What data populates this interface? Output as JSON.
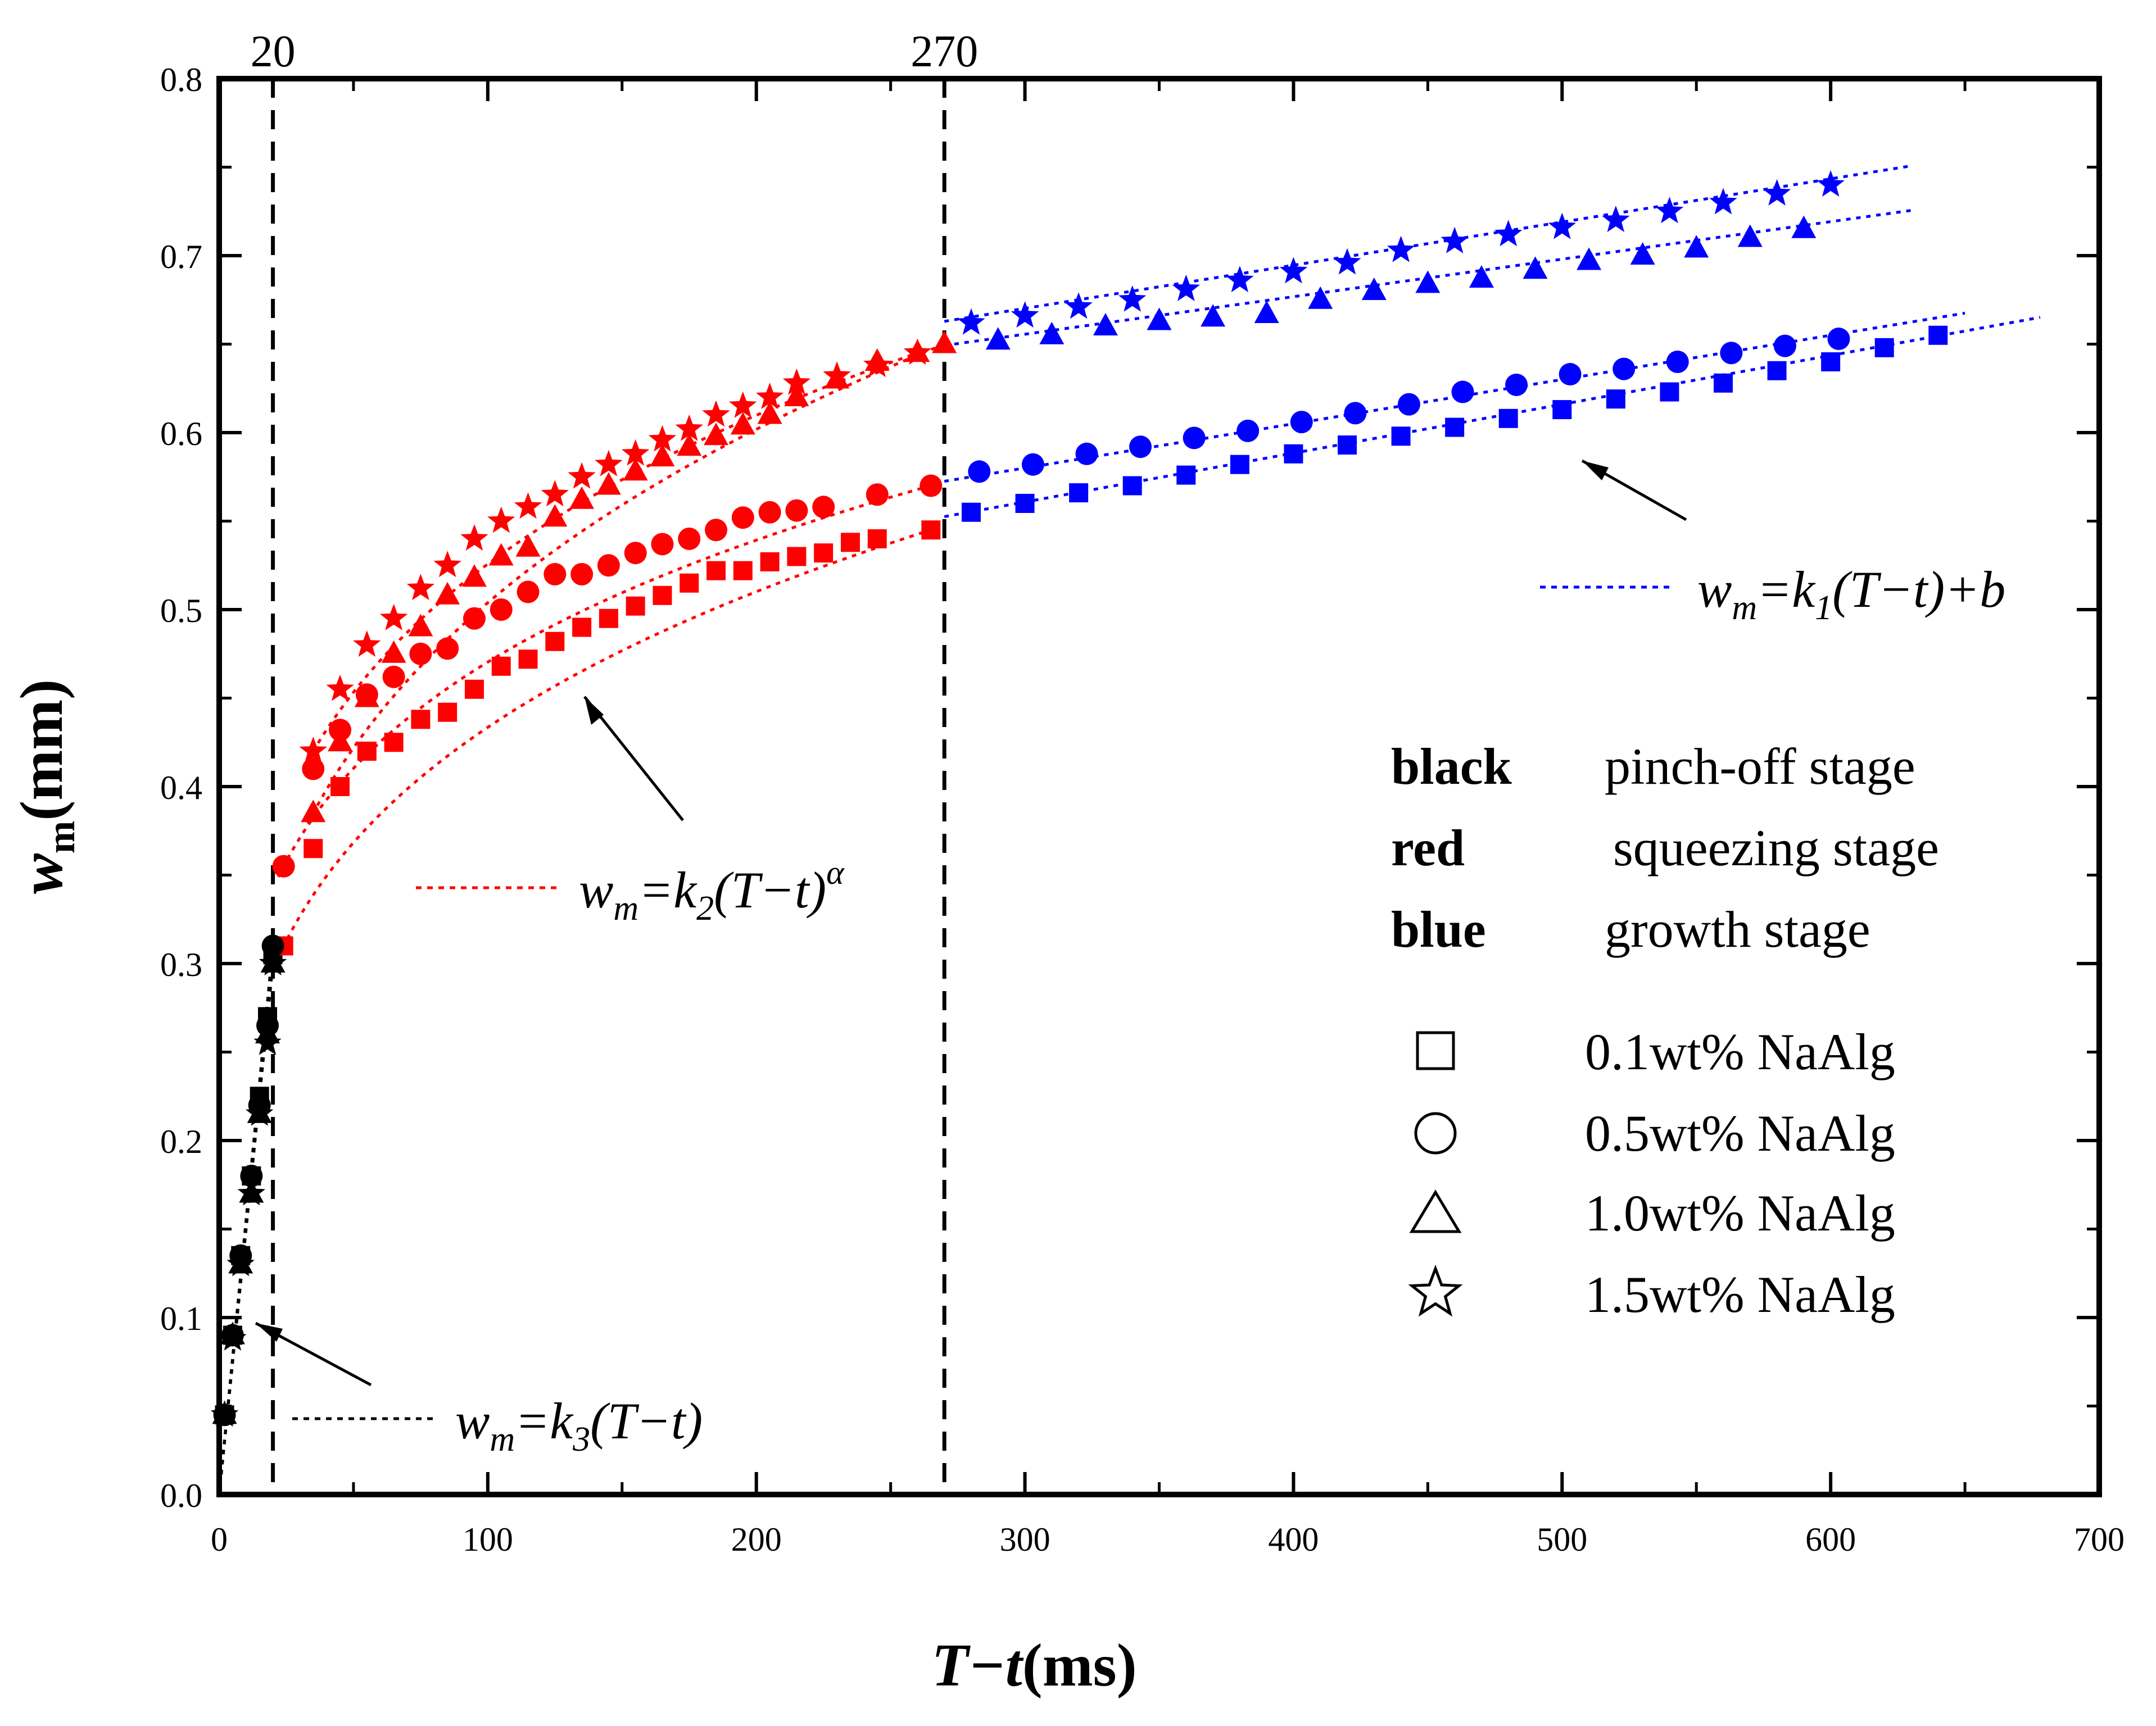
{
  "chart_data": {
    "type": "scatter",
    "xlabel": {
      "main": "T−t",
      "unit": "(ms)"
    },
    "ylabel": {
      "main": "w",
      "sub": "m",
      "unit": "(mm)"
    },
    "xlim": [
      0,
      700
    ],
    "ylim": [
      0,
      0.8
    ],
    "xticks": [
      0,
      100,
      200,
      300,
      400,
      500,
      600,
      700
    ],
    "yticks": [
      0.0,
      0.1,
      0.2,
      0.3,
      0.4,
      0.5,
      0.6,
      0.7,
      0.8
    ],
    "xtick_labels": [
      "0",
      "100",
      "200",
      "300",
      "400",
      "500",
      "600",
      "700"
    ],
    "ytick_labels": [
      "0.0",
      "0.1",
      "0.2",
      "0.3",
      "0.4",
      "0.5",
      "0.6",
      "0.7",
      "0.8"
    ],
    "grid": false,
    "stage_boundaries": [
      {
        "x": 20,
        "label": "20"
      },
      {
        "x": 270,
        "label": "270"
      }
    ],
    "stage_colors": {
      "black": "#000000",
      "red": "#ff0000",
      "blue": "#0000ff"
    },
    "legend": {
      "stages": [
        {
          "key": "black",
          "text": "pinch-off stage",
          "color": "#000000"
        },
        {
          "key": "red",
          "text": "squeezing stage",
          "color": "#ff0000"
        },
        {
          "key": "blue",
          "text": "growth stage",
          "color": "#0000ff"
        }
      ],
      "markers": [
        {
          "symbol": "square",
          "text": "0.1wt%  NaAlg"
        },
        {
          "symbol": "circle",
          "text": "0.5wt%  NaAlg"
        },
        {
          "symbol": "triangle",
          "text": "1.0wt%  NaAlg"
        },
        {
          "symbol": "star",
          "text": "1.5wt%  NaAlg"
        }
      ]
    },
    "equations": {
      "k1": {
        "lhs": "w",
        "lhs_sub": "m",
        "rhs_a": "=k",
        "k_sub": "1",
        "rhs_b": "(T−t)+b"
      },
      "k2": {
        "lhs": "w",
        "lhs_sub": "m",
        "rhs_a": "=k",
        "k_sub": "2",
        "rhs_b": "(T−t)",
        "sup": "α"
      },
      "k3": {
        "lhs": "w",
        "lhs_sub": "m",
        "rhs_a": "=k",
        "k_sub": "3",
        "rhs_b": "(T−t)"
      }
    },
    "series": [
      {
        "name": "0.1wt% NaAlg",
        "symbol": "square",
        "pinch": {
          "x": [
            2,
            5,
            8,
            12,
            15,
            18,
            20
          ],
          "y": [
            0.045,
            0.09,
            0.135,
            0.18,
            0.225,
            0.27,
            0.305
          ]
        },
        "squeeze": {
          "x": [
            24,
            35,
            45,
            55,
            65,
            75,
            85,
            95,
            105,
            115,
            125,
            135,
            145,
            155,
            165,
            175,
            185,
            195,
            205,
            215,
            225,
            235,
            245,
            265
          ],
          "y": [
            0.31,
            0.365,
            0.4,
            0.42,
            0.425,
            0.438,
            0.442,
            0.455,
            0.468,
            0.472,
            0.482,
            0.49,
            0.495,
            0.502,
            0.508,
            0.515,
            0.522,
            0.522,
            0.527,
            0.53,
            0.532,
            0.538,
            0.54,
            0.545
          ]
        },
        "growth": {
          "x": [
            280,
            300,
            320,
            340,
            360,
            380,
            400,
            420,
            440,
            460,
            480,
            500,
            520,
            540,
            560,
            580,
            600,
            620,
            640
          ],
          "y": [
            0.555,
            0.56,
            0.566,
            0.57,
            0.576,
            0.582,
            0.588,
            0.593,
            0.598,
            0.603,
            0.608,
            0.613,
            0.619,
            0.623,
            0.628,
            0.635,
            0.64,
            0.648,
            0.655
          ]
        },
        "fit_growth": {
          "k1": 0.000276,
          "b": 0.478,
          "x_end": 678
        }
      },
      {
        "name": "0.5wt% NaAlg",
        "symbol": "circle",
        "pinch": {
          "x": [
            2,
            5,
            8,
            12,
            15,
            18,
            20
          ],
          "y": [
            0.045,
            0.09,
            0.135,
            0.18,
            0.22,
            0.265,
            0.31
          ]
        },
        "squeeze": {
          "x": [
            24,
            35,
            45,
            55,
            65,
            75,
            85,
            95,
            105,
            115,
            125,
            135,
            145,
            155,
            165,
            175,
            185,
            195,
            205,
            215,
            225,
            245,
            265
          ],
          "y": [
            0.355,
            0.41,
            0.432,
            0.452,
            0.462,
            0.475,
            0.478,
            0.495,
            0.5,
            0.51,
            0.52,
            0.52,
            0.525,
            0.532,
            0.537,
            0.54,
            0.545,
            0.552,
            0.555,
            0.556,
            0.558,
            0.565,
            0.57
          ]
        },
        "growth": {
          "x": [
            283,
            303,
            323,
            343,
            363,
            383,
            403,
            423,
            443,
            463,
            483,
            503,
            523,
            543,
            563,
            583,
            603
          ],
          "y": [
            0.578,
            0.582,
            0.588,
            0.592,
            0.597,
            0.601,
            0.606,
            0.611,
            0.616,
            0.623,
            0.627,
            0.633,
            0.636,
            0.64,
            0.645,
            0.649,
            0.653
          ]
        },
        "fit_growth": {
          "k1": 0.00025,
          "b": 0.505,
          "x_end": 650
        }
      },
      {
        "name": "1.0wt% NaAlg",
        "symbol": "triangle",
        "pinch": {
          "x": [
            2,
            5,
            8,
            12,
            15,
            18,
            20
          ],
          "y": [
            0.045,
            0.09,
            0.13,
            0.17,
            0.215,
            0.26,
            0.3
          ]
        },
        "squeeze": {
          "x": [
            35,
            45,
            55,
            65,
            75,
            85,
            95,
            105,
            115,
            125,
            135,
            145,
            155,
            165,
            175,
            185,
            195,
            205,
            215,
            230,
            245,
            260,
            270
          ],
          "y": [
            0.385,
            0.425,
            0.45,
            0.475,
            0.49,
            0.508,
            0.518,
            0.53,
            0.535,
            0.552,
            0.562,
            0.57,
            0.578,
            0.586,
            0.592,
            0.598,
            0.604,
            0.61,
            0.62,
            0.63,
            0.64,
            0.645,
            0.65
          ]
        },
        "growth": {
          "x": [
            290,
            310,
            330,
            350,
            370,
            390,
            410,
            430,
            450,
            470,
            490,
            510,
            530,
            550,
            570,
            590
          ],
          "y": [
            0.652,
            0.655,
            0.66,
            0.663,
            0.665,
            0.667,
            0.675,
            0.68,
            0.684,
            0.687,
            0.692,
            0.697,
            0.7,
            0.704,
            0.71,
            0.715
          ]
        },
        "fit_growth": {
          "k1": 0.000212,
          "b": 0.592,
          "x_end": 630
        }
      },
      {
        "name": "1.5wt% NaAlg",
        "symbol": "star",
        "pinch": {
          "x": [
            2,
            5,
            8,
            12,
            15,
            18,
            20
          ],
          "y": [
            0.045,
            0.088,
            0.13,
            0.17,
            0.215,
            0.255,
            0.3
          ]
        },
        "squeeze": {
          "x": [
            35,
            45,
            55,
            65,
            75,
            85,
            95,
            105,
            115,
            125,
            135,
            145,
            155,
            165,
            175,
            185,
            195,
            205,
            215,
            230,
            245,
            260
          ],
          "y": [
            0.42,
            0.455,
            0.48,
            0.495,
            0.512,
            0.525,
            0.54,
            0.55,
            0.558,
            0.565,
            0.575,
            0.582,
            0.588,
            0.596,
            0.602,
            0.61,
            0.615,
            0.62,
            0.628,
            0.632,
            0.638,
            0.645
          ]
        },
        "growth": {
          "x": [
            280,
            300,
            320,
            340,
            360,
            380,
            400,
            420,
            440,
            460,
            480,
            500,
            520,
            540,
            560,
            580,
            600
          ],
          "y": [
            0.662,
            0.666,
            0.671,
            0.675,
            0.681,
            0.686,
            0.691,
            0.696,
            0.703,
            0.708,
            0.712,
            0.716,
            0.72,
            0.725,
            0.73,
            0.735,
            0.74
          ]
        },
        "fit_growth": {
          "k1": 0.000244,
          "b": 0.597,
          "x_end": 630
        }
      }
    ]
  }
}
